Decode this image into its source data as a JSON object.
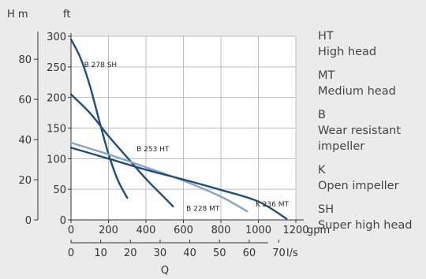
{
  "chart_data": {
    "type": "line",
    "head_unit_m": "H m",
    "head_unit_ft": "ft",
    "flow_unit_gpm": "gpm",
    "flow_unit_ls": "l/s",
    "xlabel": "Q",
    "x_gpm_ticks": [
      "0",
      "200",
      "400",
      "600",
      "800",
      "1000",
      "1200"
    ],
    "x_ls_ticks": [
      "0",
      "10",
      "20",
      "30",
      "40",
      "50",
      "60",
      "70"
    ],
    "y_ft_ticks": [
      "0",
      "50",
      "100",
      "150",
      "200",
      "250",
      "300"
    ],
    "y_m_ticks": [
      "0",
      "20",
      "40",
      "60",
      "80"
    ],
    "xlim_gpm": [
      0,
      1200
    ],
    "ylim_ft": [
      0,
      300
    ],
    "grid": true,
    "series": [
      {
        "name": "B 278 SH",
        "color": "#1f4e7a",
        "x": [
          0,
          50,
          100,
          150,
          200,
          250,
          300
        ],
        "y": [
          295,
          265,
          220,
          163,
          108,
          65,
          36
        ]
      },
      {
        "name": "B 253 HT",
        "color": "#1f4e7a",
        "x": [
          0,
          100,
          200,
          300,
          400,
          500,
          545
        ],
        "y": [
          205,
          175,
          137,
          102,
          67,
          36,
          22
        ]
      },
      {
        "name": "B 228 MT",
        "color": "#8aa3c8",
        "x": [
          0,
          200,
          400,
          600,
          800,
          940
        ],
        "y": [
          126,
          107,
          86,
          64,
          38,
          14
        ]
      },
      {
        "name": "K 236 MT",
        "color": "#1f4e7a",
        "x": [
          0,
          200,
          400,
          600,
          800,
          1000,
          1150
        ],
        "y": [
          118,
          100,
          82,
          66,
          49,
          30,
          2
        ]
      }
    ]
  },
  "legend": [
    {
      "code": "HT",
      "desc": "High head"
    },
    {
      "code": "MT",
      "desc": "Medium head"
    },
    {
      "code": "B",
      "desc": "Wear resistant impeller"
    },
    {
      "code": "K",
      "desc": "Open impeller"
    },
    {
      "code": "SH",
      "desc": "Super high head"
    }
  ]
}
